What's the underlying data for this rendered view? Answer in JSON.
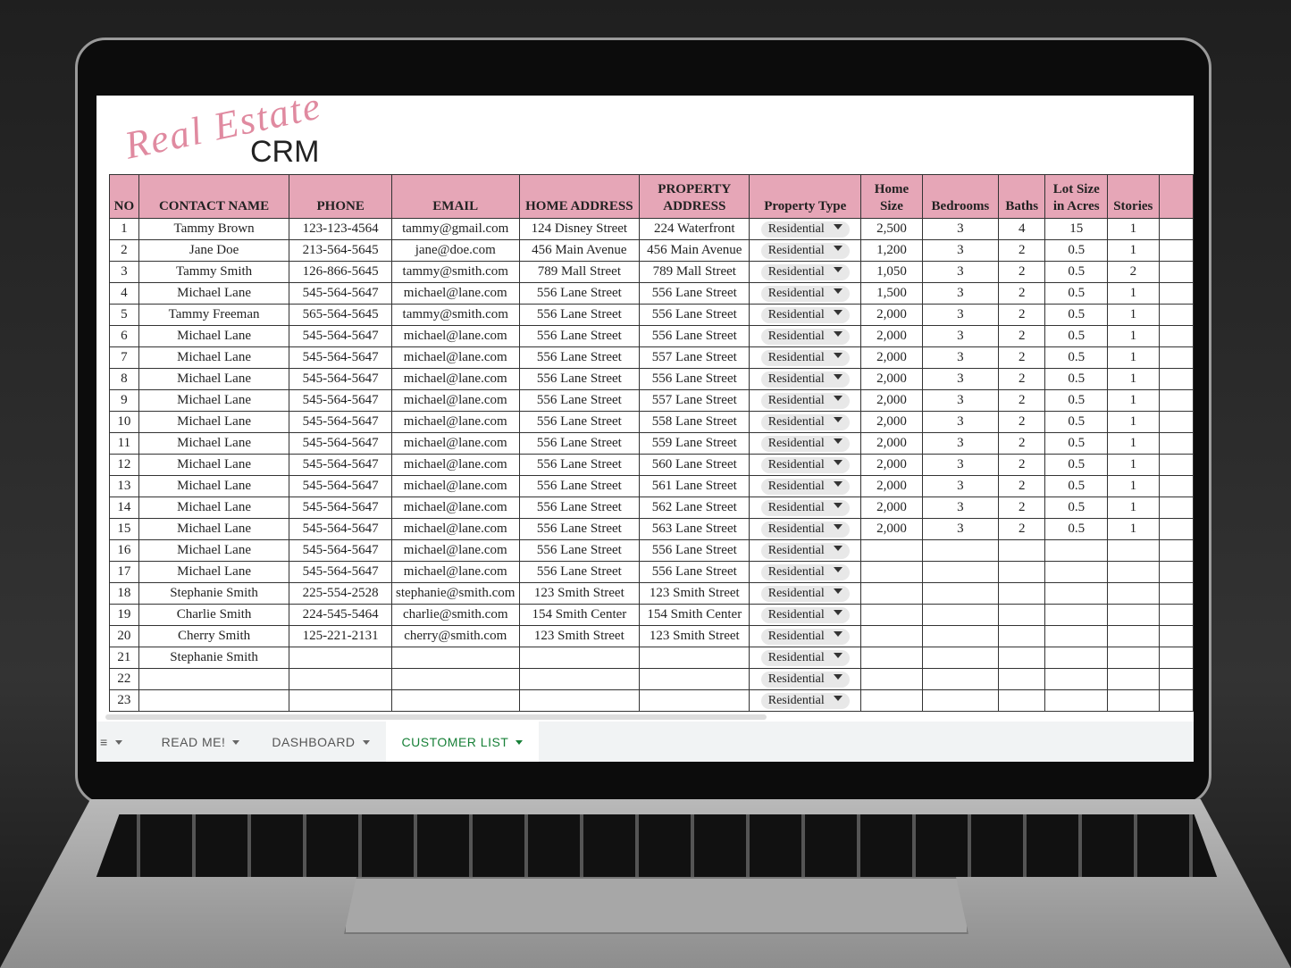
{
  "logo": {
    "script": "Real Estate",
    "text": "CRM"
  },
  "table": {
    "headers": [
      "NO",
      "CONTACT NAME",
      "PHONE",
      "EMAIL",
      "HOME ADDRESS",
      "PROPERTY ADDRESS",
      "Property Type",
      "Home Size",
      "Bedrooms",
      "Baths",
      "Lot Size in Acres",
      "Stories"
    ],
    "rows": [
      [
        "1",
        "Tammy Brown",
        "123-123-4564",
        "tammy@gmail.com",
        "124 Disney Street",
        "224 Waterfront",
        "Residential",
        "2,500",
        "3",
        "4",
        "15",
        "1"
      ],
      [
        "2",
        "Jane Doe",
        "213-564-5645",
        "jane@doe.com",
        "456 Main Avenue",
        "456 Main Avenue",
        "Residential",
        "1,200",
        "3",
        "2",
        "0.5",
        "1"
      ],
      [
        "3",
        "Tammy Smith",
        "126-866-5645",
        "tammy@smith.com",
        "789 Mall Street",
        "789 Mall Street",
        "Residential",
        "1,050",
        "3",
        "2",
        "0.5",
        "2"
      ],
      [
        "4",
        "Michael Lane",
        "545-564-5647",
        "michael@lane.com",
        "556 Lane Street",
        "556 Lane Street",
        "Residential",
        "1,500",
        "3",
        "2",
        "0.5",
        "1"
      ],
      [
        "5",
        "Tammy Freeman",
        "565-564-5645",
        "tammy@smith.com",
        "556 Lane Street",
        "556 Lane Street",
        "Residential",
        "2,000",
        "3",
        "2",
        "0.5",
        "1"
      ],
      [
        "6",
        "Michael Lane",
        "545-564-5647",
        "michael@lane.com",
        "556 Lane Street",
        "556 Lane Street",
        "Residential",
        "2,000",
        "3",
        "2",
        "0.5",
        "1"
      ],
      [
        "7",
        "Michael Lane",
        "545-564-5647",
        "michael@lane.com",
        "556 Lane Street",
        "557 Lane Street",
        "Residential",
        "2,000",
        "3",
        "2",
        "0.5",
        "1"
      ],
      [
        "8",
        "Michael Lane",
        "545-564-5647",
        "michael@lane.com",
        "556 Lane Street",
        "556 Lane Street",
        "Residential",
        "2,000",
        "3",
        "2",
        "0.5",
        "1"
      ],
      [
        "9",
        "Michael Lane",
        "545-564-5647",
        "michael@lane.com",
        "556 Lane Street",
        "557 Lane Street",
        "Residential",
        "2,000",
        "3",
        "2",
        "0.5",
        "1"
      ],
      [
        "10",
        "Michael Lane",
        "545-564-5647",
        "michael@lane.com",
        "556 Lane Street",
        "558 Lane Street",
        "Residential",
        "2,000",
        "3",
        "2",
        "0.5",
        "1"
      ],
      [
        "11",
        "Michael Lane",
        "545-564-5647",
        "michael@lane.com",
        "556 Lane Street",
        "559 Lane Street",
        "Residential",
        "2,000",
        "3",
        "2",
        "0.5",
        "1"
      ],
      [
        "12",
        "Michael Lane",
        "545-564-5647",
        "michael@lane.com",
        "556 Lane Street",
        "560 Lane Street",
        "Residential",
        "2,000",
        "3",
        "2",
        "0.5",
        "1"
      ],
      [
        "13",
        "Michael Lane",
        "545-564-5647",
        "michael@lane.com",
        "556 Lane Street",
        "561 Lane Street",
        "Residential",
        "2,000",
        "3",
        "2",
        "0.5",
        "1"
      ],
      [
        "14",
        "Michael Lane",
        "545-564-5647",
        "michael@lane.com",
        "556 Lane Street",
        "562 Lane Street",
        "Residential",
        "2,000",
        "3",
        "2",
        "0.5",
        "1"
      ],
      [
        "15",
        "Michael Lane",
        "545-564-5647",
        "michael@lane.com",
        "556 Lane Street",
        "563 Lane Street",
        "Residential",
        "2,000",
        "3",
        "2",
        "0.5",
        "1"
      ],
      [
        "16",
        "Michael Lane",
        "545-564-5647",
        "michael@lane.com",
        "556 Lane Street",
        "556 Lane Street",
        "Residential",
        null,
        null,
        null,
        null,
        null
      ],
      [
        "17",
        "Michael Lane",
        "545-564-5647",
        "michael@lane.com",
        "556 Lane Street",
        "556 Lane Street",
        "Residential",
        null,
        null,
        null,
        null,
        null
      ],
      [
        "18",
        "Stephanie Smith",
        "225-554-2528",
        "stephanie@smith.com",
        "123 Smith Street",
        "123 Smith Street",
        "Residential",
        null,
        null,
        null,
        null,
        null
      ],
      [
        "19",
        "Charlie Smith",
        "224-545-5464",
        "charlie@smith.com",
        "154 Smith Center",
        "154 Smith Center",
        "Residential",
        null,
        null,
        null,
        null,
        null
      ],
      [
        "20",
        "Cherry Smith",
        "125-221-2131",
        "cherry@smith.com",
        "123 Smith Street",
        "123 Smith Street",
        "Residential",
        null,
        null,
        null,
        null,
        null
      ],
      [
        "21",
        "Stephanie Smith",
        null,
        null,
        null,
        null,
        "Residential",
        null,
        null,
        null,
        null,
        null
      ],
      [
        "22",
        null,
        null,
        null,
        null,
        null,
        "Residential",
        null,
        null,
        null,
        null,
        null
      ],
      [
        "23",
        null,
        null,
        null,
        null,
        null,
        "Residential",
        null,
        null,
        null,
        null,
        null
      ]
    ]
  },
  "tabs": {
    "items": [
      "READ ME!",
      "DASHBOARD",
      "CUSTOMER LIST"
    ],
    "active": 2
  }
}
